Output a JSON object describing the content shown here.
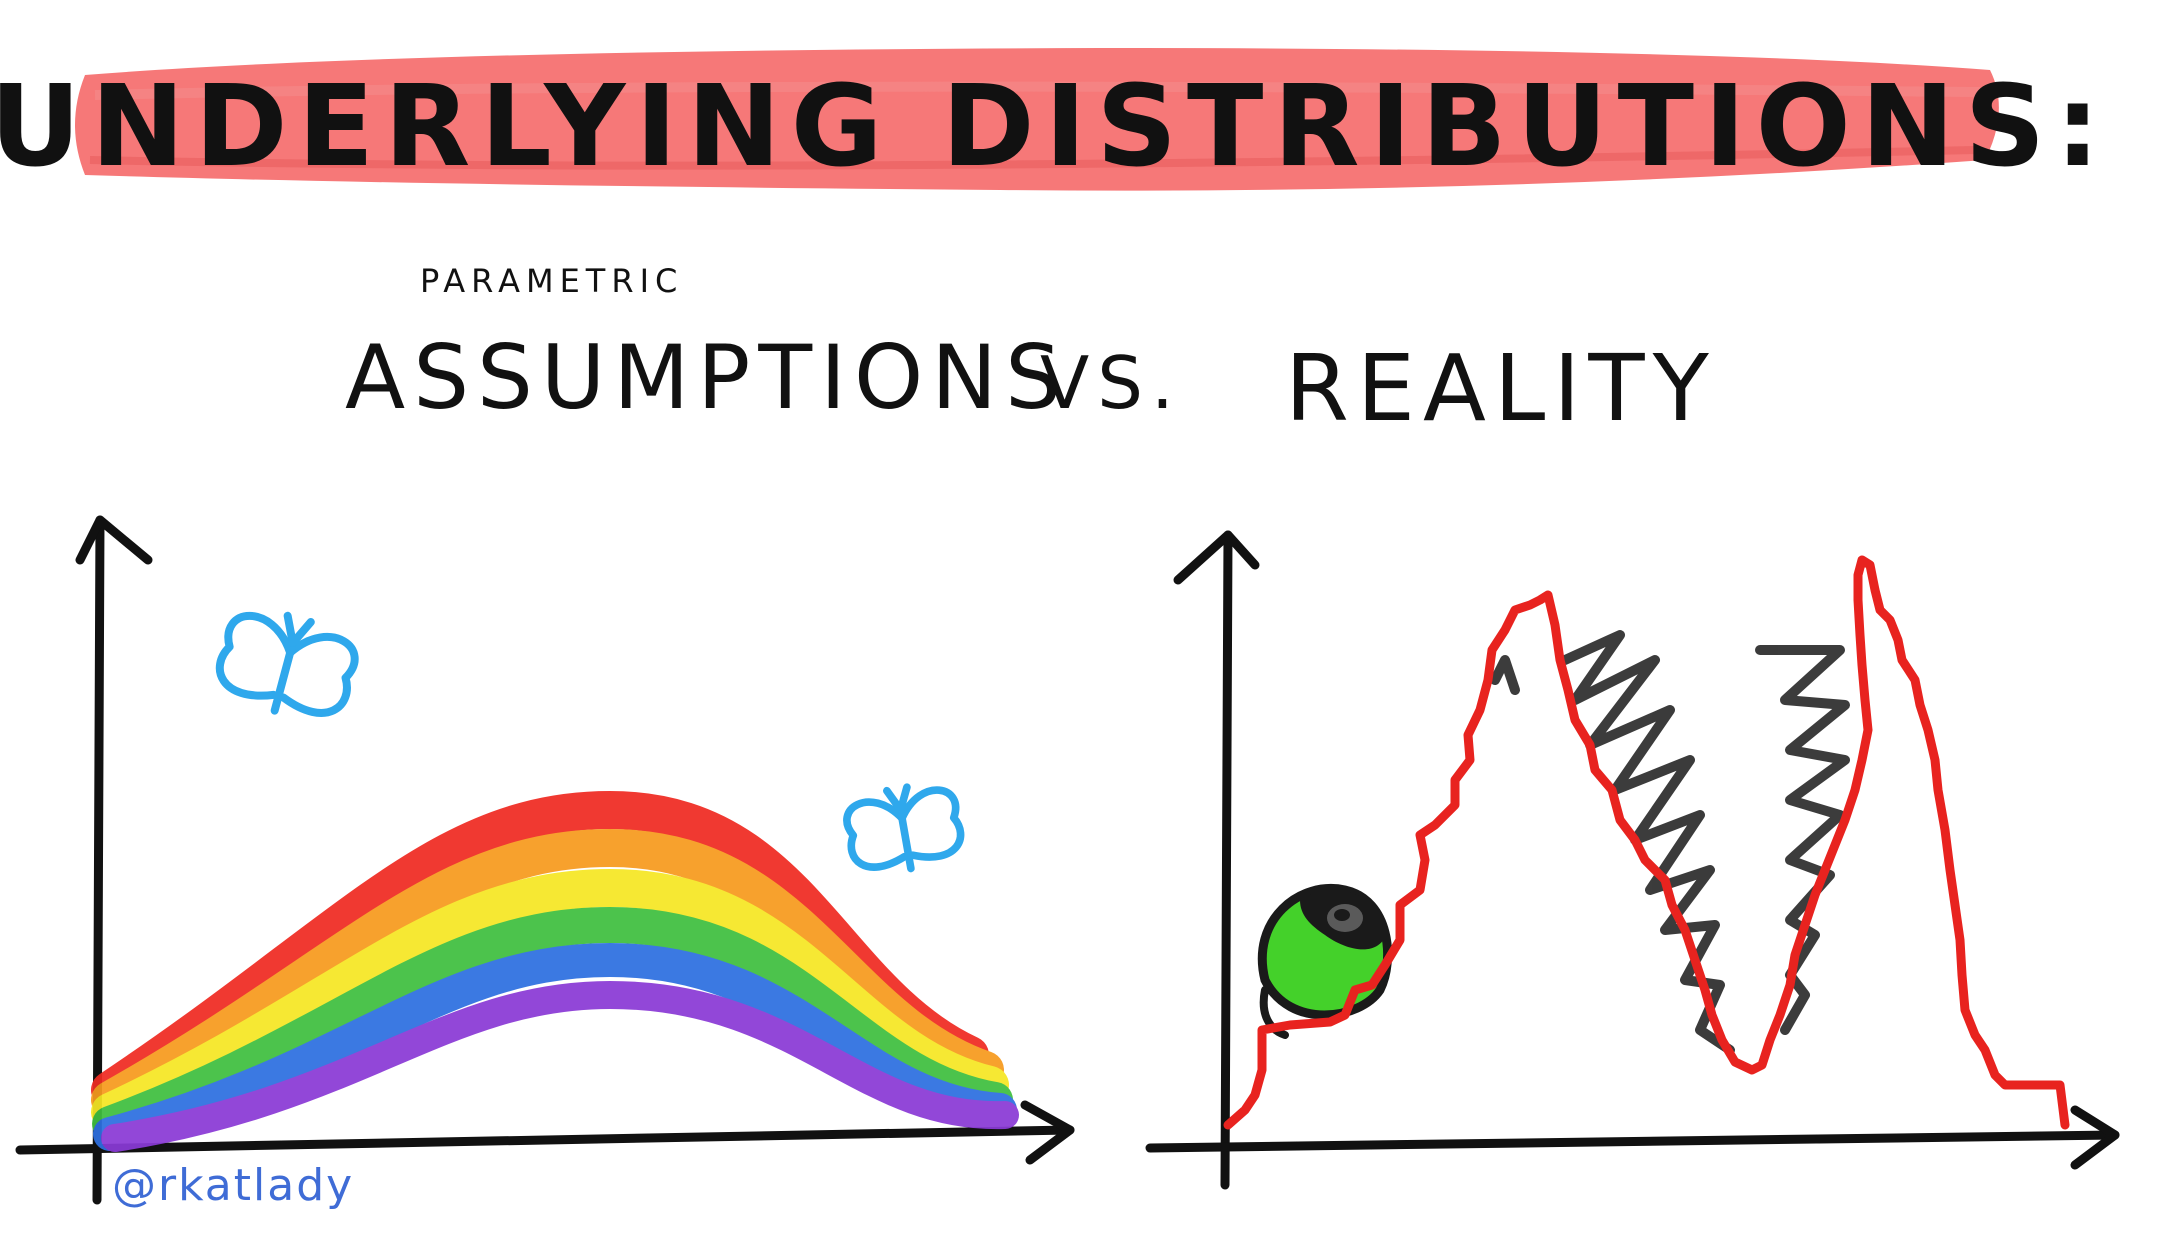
{
  "title": "UNDERLYING DISTRIBUTIONS:",
  "subtitle": {
    "qualifier": "PARAMETRIC",
    "left": "ASSUMPTIONS",
    "versus": "VS.",
    "right": "REALITY"
  },
  "signature": "@rkatlady",
  "colors": {
    "title_highlight": "#f56d6d",
    "ink": "#111111",
    "reality_curve": "#e8231f",
    "butterfly": "#2fa8ec",
    "signature": "#3f6cd6",
    "monster_eye": "#44d12a",
    "rainbow": [
      "#ef2b22",
      "#f79a1e",
      "#f6e724",
      "#3fbf3f",
      "#2d6fe0",
      "#8a3ad6"
    ]
  },
  "icons": [
    "butterfly-icon",
    "monster-eye-icon",
    "monster-teeth-icon"
  ]
}
